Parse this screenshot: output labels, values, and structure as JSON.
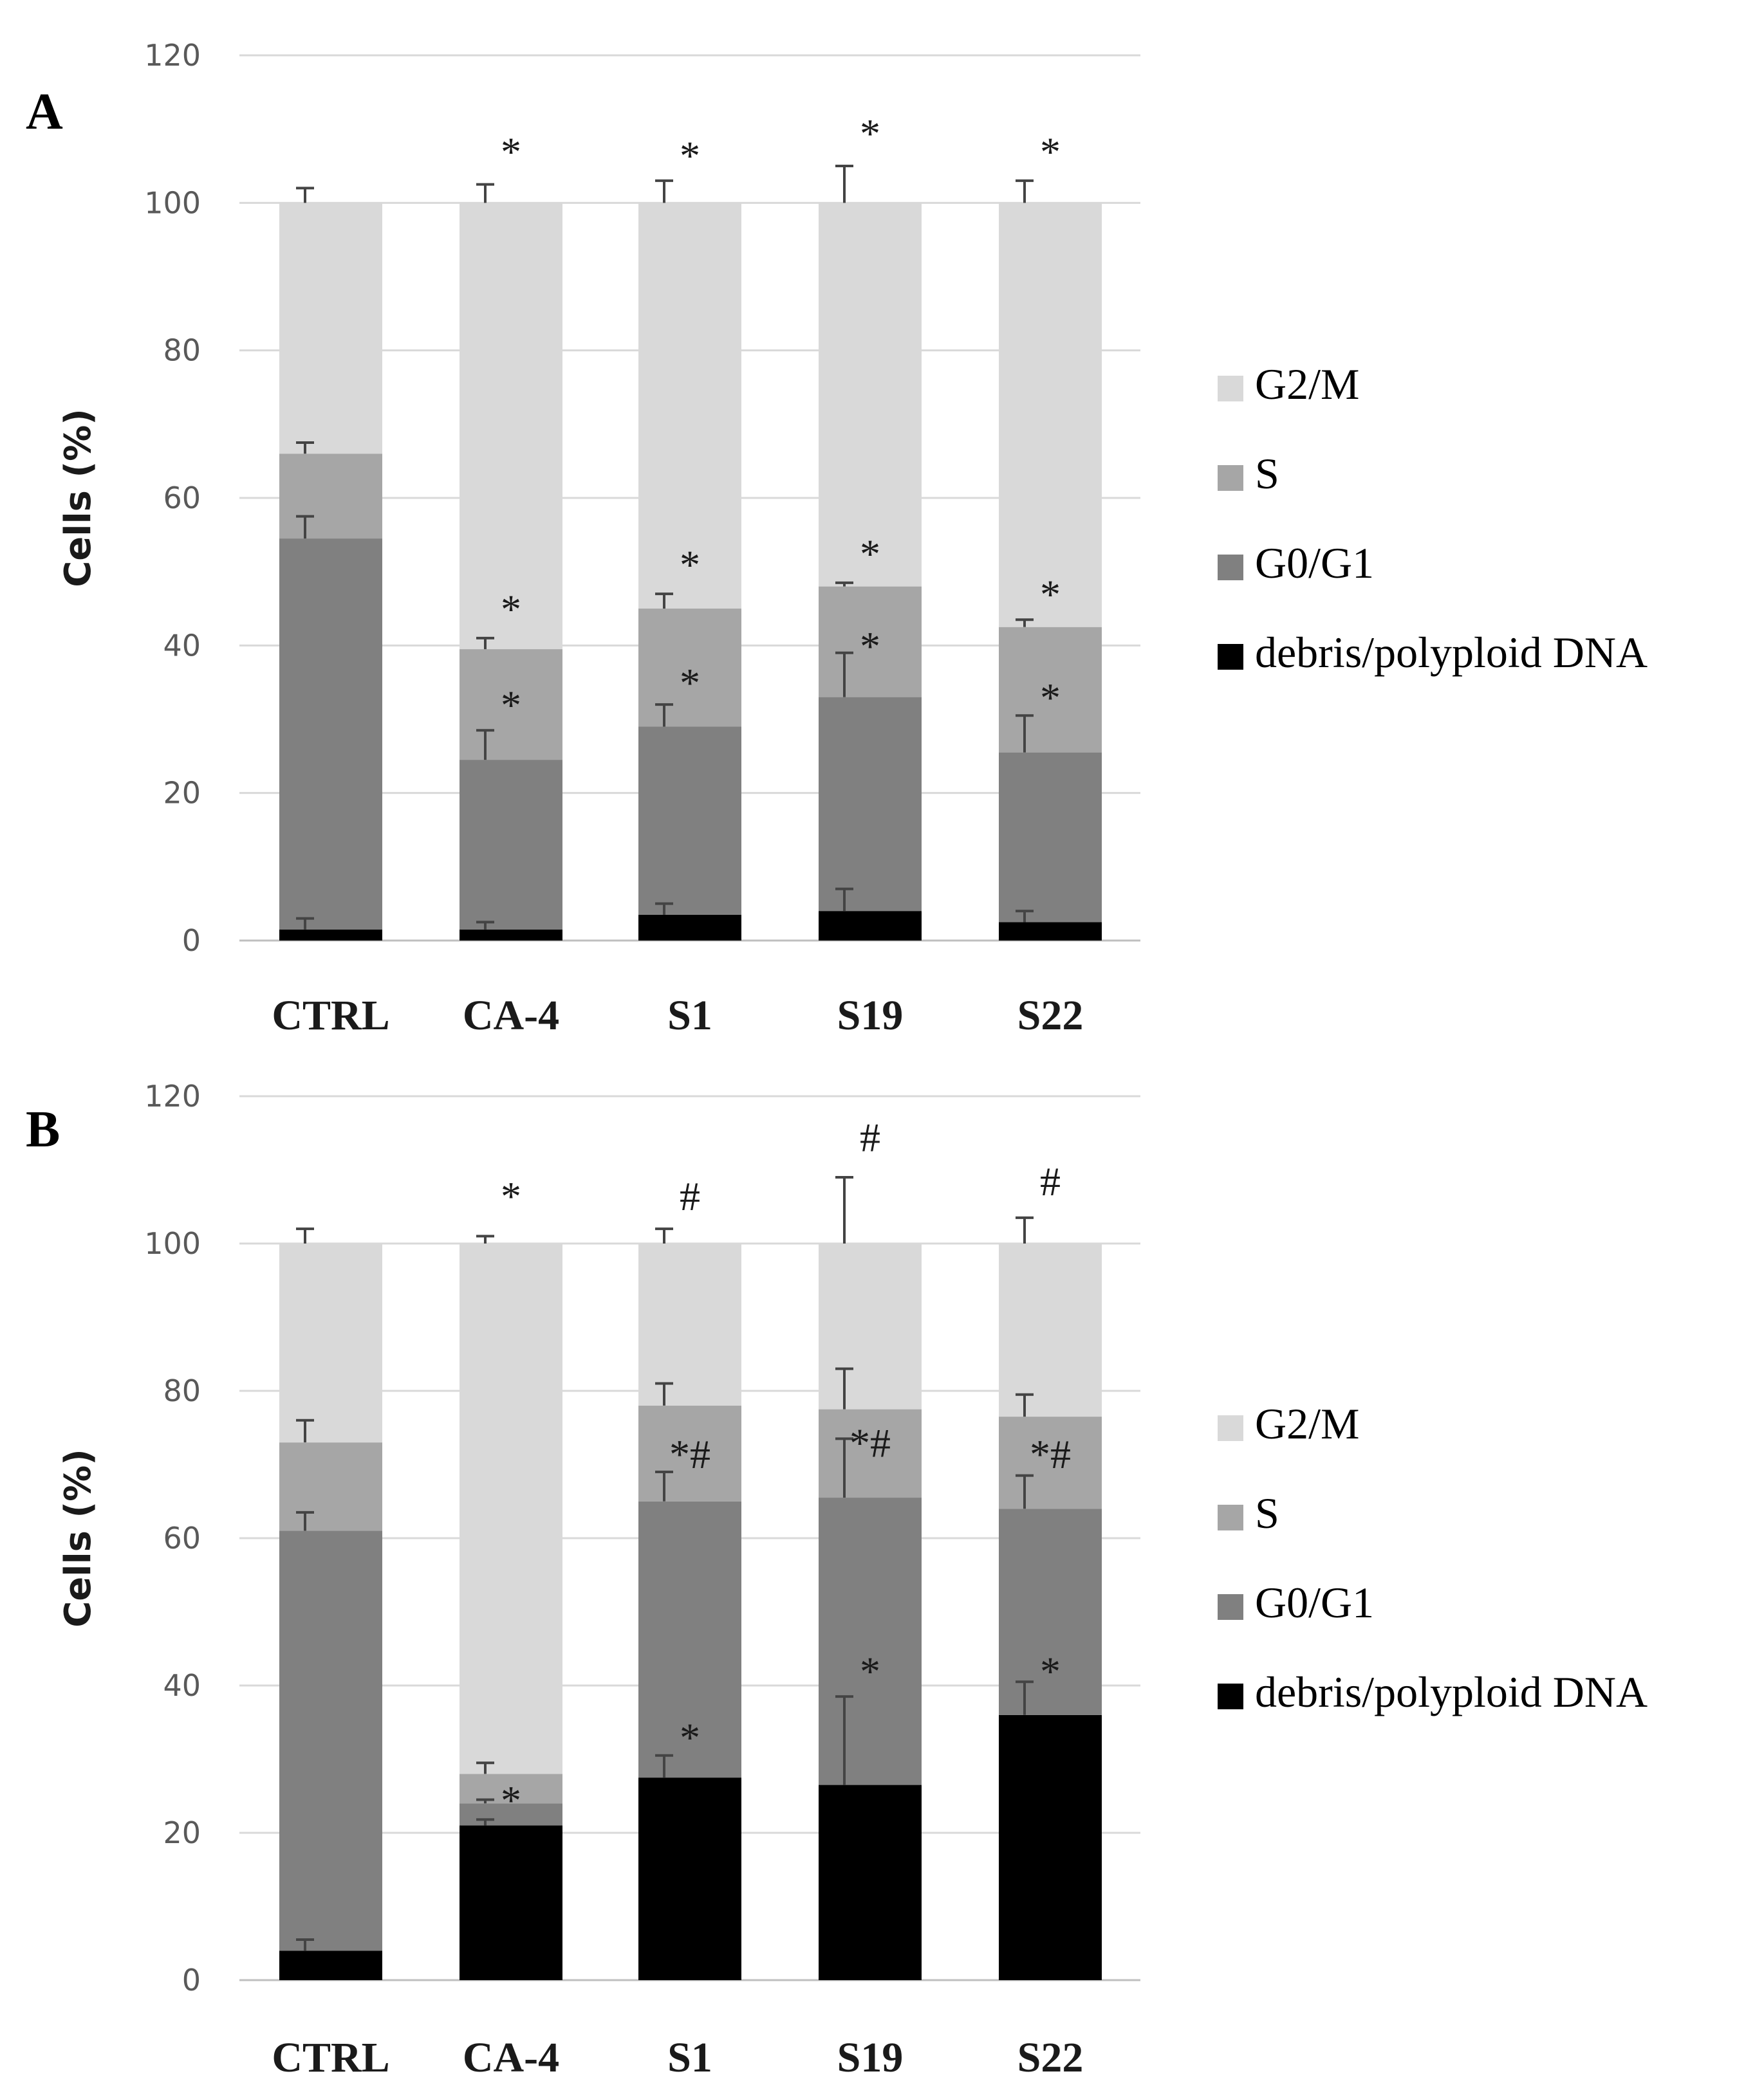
{
  "colors": {
    "debris": "#000000",
    "g0g1": "#808080",
    "s": "#a6a6a6",
    "g2m": "#d9d9d9"
  },
  "chart_data": [
    {
      "type": "bar",
      "stacked": true,
      "panel_label": "A",
      "ylabel": "Cells (%)",
      "ylim": [
        0,
        120
      ],
      "yticks": [
        0,
        20,
        40,
        60,
        80,
        100,
        120
      ],
      "categories": [
        "CTRL",
        "CA-4",
        "S1",
        "S19",
        "S22"
      ],
      "legend_position": "right",
      "series": [
        {
          "name": "debris/polyploid DNA",
          "key": "debris",
          "values": [
            1.5,
            1.5,
            3.5,
            4.0,
            2.5
          ],
          "errors": [
            1.5,
            1.0,
            1.5,
            3.0,
            1.5
          ]
        },
        {
          "name": "G0/G1",
          "key": "g0g1",
          "values": [
            53.0,
            23.0,
            25.5,
            29.0,
            23.0
          ],
          "errors": [
            3.0,
            4.0,
            3.0,
            6.0,
            5.0
          ]
        },
        {
          "name": "S",
          "key": "s",
          "values": [
            11.5,
            15.0,
            16.0,
            15.0,
            17.0
          ],
          "errors": [
            1.5,
            1.5,
            2.0,
            0.5,
            1.0
          ]
        },
        {
          "name": "G2/M",
          "key": "g2m",
          "values": [
            34.0,
            60.5,
            55.0,
            52.0,
            57.5
          ],
          "errors": [
            2.0,
            2.5,
            3.0,
            5.0,
            3.0
          ]
        }
      ],
      "annotations": [
        {
          "category": "CA-4",
          "y": 108,
          "text": "*"
        },
        {
          "category": "S1",
          "y": 107.5,
          "text": "*"
        },
        {
          "category": "S19",
          "y": 110.5,
          "text": "*"
        },
        {
          "category": "S22",
          "y": 108,
          "text": "*"
        },
        {
          "category": "CA-4",
          "y": 46,
          "text": "*"
        },
        {
          "category": "S1",
          "y": 52,
          "text": "*"
        },
        {
          "category": "S19",
          "y": 53.5,
          "text": "*"
        },
        {
          "category": "S22",
          "y": 48,
          "text": "*"
        },
        {
          "category": "CA-4",
          "y": 33,
          "text": "*"
        },
        {
          "category": "S1",
          "y": 36,
          "text": "*"
        },
        {
          "category": "S19",
          "y": 41,
          "text": "*"
        },
        {
          "category": "S22",
          "y": 34,
          "text": "*"
        }
      ]
    },
    {
      "type": "bar",
      "stacked": true,
      "panel_label": "B",
      "ylabel": "Cells (%)",
      "ylim": [
        0,
        120
      ],
      "yticks": [
        0,
        20,
        40,
        60,
        80,
        100,
        120
      ],
      "categories": [
        "CTRL",
        "CA-4",
        "S1",
        "S19",
        "S22"
      ],
      "legend_position": "right",
      "series": [
        {
          "name": "debris/polyploid DNA",
          "key": "debris",
          "values": [
            4.0,
            21.0,
            27.5,
            26.5,
            36.0
          ],
          "errors": [
            1.5,
            0.8,
            3.0,
            12.0,
            4.5
          ]
        },
        {
          "name": "G0/G1",
          "key": "g0g1",
          "values": [
            57.0,
            3.0,
            37.5,
            39.0,
            28.0
          ],
          "errors": [
            2.5,
            0.5,
            4.0,
            8.0,
            4.5
          ]
        },
        {
          "name": "S",
          "key": "s",
          "values": [
            12.0,
            4.0,
            13.0,
            12.0,
            12.5
          ],
          "errors": [
            3.0,
            1.5,
            3.0,
            5.5,
            3.0
          ]
        },
        {
          "name": "G2/M",
          "key": "g2m",
          "values": [
            27.0,
            72.0,
            22.0,
            22.5,
            23.5
          ],
          "errors": [
            2.0,
            1.0,
            2.0,
            9.0,
            3.5
          ]
        }
      ],
      "annotations": [
        {
          "category": "CA-4",
          "y": 107.5,
          "text": "*"
        },
        {
          "category": "S1",
          "y": 107.5,
          "text": "#"
        },
        {
          "category": "S19",
          "y": 115.5,
          "text": "#"
        },
        {
          "category": "S22",
          "y": 109.5,
          "text": "#"
        },
        {
          "category": "S1",
          "y": 72.5,
          "text": "*#"
        },
        {
          "category": "S19",
          "y": 74,
          "text": "*#"
        },
        {
          "category": "S22",
          "y": 72.5,
          "text": "*#"
        },
        {
          "category": "CA-4",
          "y": 25.5,
          "text": "*"
        },
        {
          "category": "S1",
          "y": 34,
          "text": "*"
        },
        {
          "category": "S19",
          "y": 43,
          "text": "*"
        },
        {
          "category": "S22",
          "y": 43,
          "text": "*"
        }
      ]
    }
  ]
}
